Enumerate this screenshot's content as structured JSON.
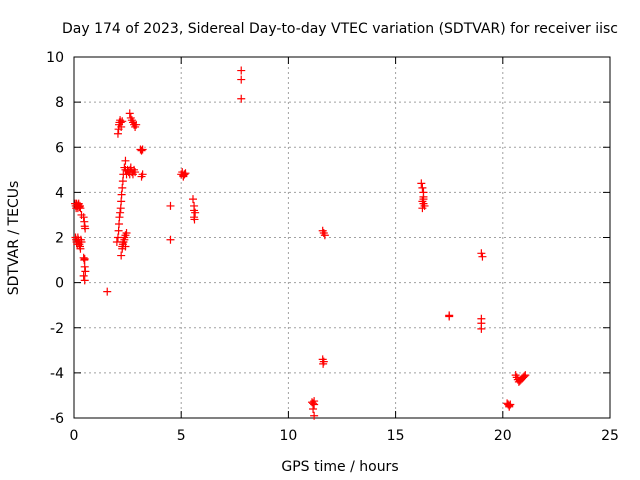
{
  "chart_data": {
    "type": "scatter",
    "title": "Day 174 of 2023, Sidereal Day-to-day VTEC variation (SDTVAR) for receiver iisc",
    "xlabel": "GPS time / hours",
    "ylabel": "SDTVAR / TECUs",
    "xlim": [
      0,
      25
    ],
    "ylim": [
      -6,
      10
    ],
    "xticks": [
      0,
      5,
      10,
      15,
      20,
      25
    ],
    "yticks": [
      -6,
      -4,
      -2,
      0,
      2,
      4,
      6,
      8,
      10
    ],
    "xtick_labels": [
      "0",
      "5",
      "10",
      "15",
      "20",
      "25"
    ],
    "ytick_labels": [
      "-6",
      "-4",
      "-2",
      "0",
      "2",
      "4",
      "6",
      "8",
      "10"
    ],
    "grid": true,
    "marker": "plus",
    "series": [
      {
        "name": "SDTVAR",
        "color": "#ff0000",
        "x": [
          0.05,
          0.08,
          0.1,
          0.12,
          0.15,
          0.18,
          0.2,
          0.22,
          0.25,
          0.28,
          0.3,
          0.35,
          0.07,
          0.1,
          0.12,
          0.15,
          0.18,
          0.2,
          0.22,
          0.25,
          0.28,
          0.3,
          0.32,
          0.35,
          0.45,
          0.48,
          0.5,
          0.52,
          0.45,
          0.48,
          0.5,
          0.53,
          0.45,
          0.5,
          0.5,
          1.55,
          2.05,
          2.08,
          2.1,
          2.12,
          2.15,
          2.18,
          2.2,
          2.25,
          2.0,
          2.05,
          2.08,
          2.1,
          2.12,
          2.15,
          2.18,
          2.2,
          2.22,
          2.25,
          2.28,
          2.3,
          2.35,
          2.4,
          2.4,
          2.45,
          2.2,
          2.25,
          2.28,
          2.3,
          2.35,
          2.4,
          2.25,
          2.3,
          2.35,
          2.4,
          2.45,
          2.5,
          2.55,
          2.6,
          2.62,
          2.65,
          2.7,
          2.75,
          2.8,
          2.85,
          2.6,
          2.65,
          2.7,
          2.75,
          2.8,
          2.85,
          2.9,
          3.1,
          3.15,
          3.2,
          3.15,
          3.2,
          4.5,
          4.5,
          5.0,
          5.05,
          5.1,
          5.15,
          5.2,
          5.1,
          5.15,
          5.55,
          5.6,
          5.65,
          5.6,
          5.62,
          5.6,
          7.8,
          7.8,
          7.8,
          11.1,
          11.15,
          11.2,
          11.15,
          11.2,
          11.2,
          11.6,
          11.65,
          11.7,
          11.6,
          11.65,
          11.62,
          16.2,
          16.25,
          16.3,
          16.3,
          16.25,
          16.3,
          16.35,
          16.25,
          16.3,
          17.5,
          17.5,
          19.0,
          19.05,
          19.0,
          19.0,
          19.0,
          20.2,
          20.25,
          20.3,
          20.3,
          20.35,
          20.6,
          20.65,
          20.7,
          20.75,
          20.8,
          20.85,
          20.9,
          20.95,
          21.0,
          21.05
        ],
        "y": [
          3.5,
          3.4,
          3.3,
          3.5,
          3.4,
          3.3,
          3.45,
          3.5,
          3.35,
          3.4,
          3.3,
          3.0,
          2.0,
          1.9,
          1.8,
          1.7,
          2.0,
          1.9,
          1.8,
          1.7,
          1.6,
          1.5,
          1.9,
          1.8,
          2.9,
          2.7,
          2.5,
          2.4,
          1.1,
          1.0,
          0.7,
          0.5,
          0.3,
          0.1,
          1.05,
          -0.4,
          6.6,
          6.8,
          7.0,
          7.1,
          7.2,
          7.1,
          6.9,
          7.15,
          1.8,
          2.0,
          2.3,
          2.6,
          2.9,
          3.1,
          3.3,
          3.6,
          3.9,
          4.2,
          4.5,
          4.8,
          5.1,
          5.4,
          5.0,
          4.8,
          1.2,
          1.5,
          1.7,
          1.8,
          2.0,
          2.1,
          1.6,
          1.8,
          1.9,
          1.6,
          2.2,
          5.0,
          4.9,
          4.8,
          5.0,
          5.1,
          4.9,
          4.8,
          5.0,
          4.9,
          7.5,
          7.3,
          7.2,
          7.1,
          7.0,
          6.9,
          7.0,
          5.9,
          5.85,
          5.9,
          4.7,
          4.8,
          3.4,
          1.9,
          4.8,
          4.9,
          4.7,
          4.8,
          4.85,
          4.75,
          4.8,
          3.7,
          3.4,
          3.1,
          2.9,
          2.8,
          3.2,
          9.4,
          9.0,
          8.15,
          -5.3,
          -5.35,
          -5.4,
          -5.6,
          -5.9,
          -5.25,
          2.3,
          2.2,
          2.1,
          -3.4,
          -3.5,
          -3.6,
          4.4,
          4.2,
          4.0,
          3.8,
          3.6,
          3.5,
          3.4,
          3.3,
          3.7,
          -1.45,
          -1.5,
          1.3,
          1.15,
          -1.6,
          -1.8,
          -2.05,
          -5.35,
          -5.4,
          -5.45,
          -5.5,
          -5.4,
          -4.1,
          -4.2,
          -4.3,
          -4.4,
          -4.35,
          -4.3,
          -4.25,
          -4.2,
          -4.15,
          -4.1
        ]
      }
    ]
  }
}
